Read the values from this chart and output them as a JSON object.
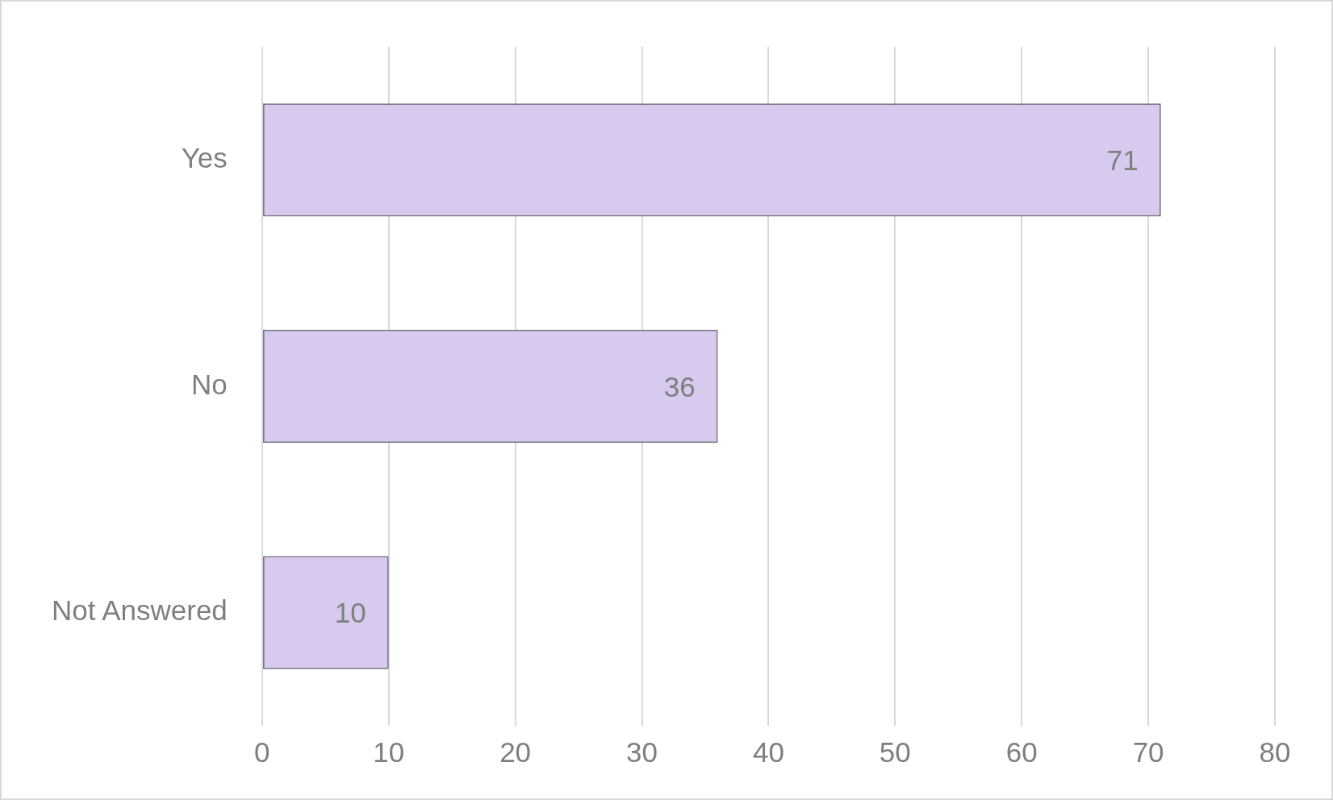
{
  "chart_data": {
    "type": "bar",
    "orientation": "horizontal",
    "categories": [
      "Yes",
      "No",
      "Not Answered"
    ],
    "values": [
      71,
      36,
      10
    ],
    "color": "#d8caee",
    "xlim": [
      0,
      80
    ],
    "xticks": [
      0,
      10,
      20,
      30,
      40,
      50,
      60,
      70,
      80
    ],
    "grid": "x",
    "data_labels": true,
    "legend": false
  }
}
